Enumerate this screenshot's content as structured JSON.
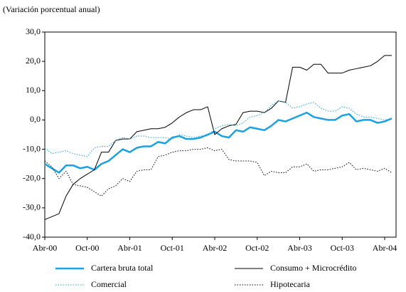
{
  "chart_data": {
    "type": "line",
    "subtitle": "(Variación porcentual anual)",
    "categories": [
      "Abr-00",
      null,
      null,
      null,
      null,
      null,
      "Oct-00",
      null,
      null,
      null,
      null,
      null,
      "Abr-01",
      null,
      null,
      null,
      null,
      null,
      "Oct-01",
      null,
      null,
      null,
      null,
      null,
      "Abr-02",
      null,
      null,
      null,
      null,
      null,
      "Oct-02",
      null,
      null,
      null,
      null,
      null,
      "Abr-03",
      null,
      null,
      null,
      null,
      null,
      "Oct-03",
      null,
      null,
      null,
      null,
      null,
      "Abr-04",
      null
    ],
    "series": [
      {
        "name": "Cartera bruta total",
        "color": "#1ba1e2",
        "style": "solid",
        "width": 2.5,
        "values": [
          -15,
          -16.5,
          -18,
          -15.5,
          -15.5,
          -16.5,
          -16,
          -17,
          -15,
          -14,
          -12,
          -10,
          -11,
          -9.5,
          -9,
          -9,
          -7.5,
          -8,
          -6,
          -5.5,
          -6.5,
          -6.5,
          -6,
          -5,
          -4,
          -5.5,
          -6,
          -3.5,
          -4,
          -2.5,
          -3,
          -3.5,
          -2,
          0,
          -0.5,
          0.5,
          1.5,
          2.5,
          1,
          0.5,
          0,
          0,
          1.5,
          2,
          -0.5,
          0,
          0,
          -1,
          -0.5,
          0.5
        ]
      },
      {
        "name": "Consumo + Microcrédito",
        "color": "#000000",
        "style": "solid",
        "width": 1,
        "values": [
          -34,
          -33,
          -32,
          -26,
          -22,
          -20,
          -18.5,
          -17,
          -11,
          -11,
          -7,
          -6.5,
          -6.5,
          -4,
          -3.5,
          -3,
          -3,
          -2.5,
          -1,
          1,
          2.5,
          3.5,
          3.5,
          4.5,
          -5,
          -3,
          -2,
          -1.5,
          2.5,
          3,
          3,
          2.5,
          4,
          6.5,
          6,
          18,
          18,
          17,
          19,
          19,
          16,
          16,
          16,
          17,
          17.5,
          18,
          18.5,
          20,
          22,
          22
        ]
      },
      {
        "name": "Comercial",
        "color": "#1ba1e2",
        "style": "dotted",
        "width": 1,
        "values": [
          -9.5,
          -11.5,
          -11,
          -10.5,
          -11.5,
          -12,
          -12.5,
          -9.5,
          -9,
          -9,
          -7,
          -6,
          -6.5,
          -5.5,
          -5.5,
          -6,
          -6,
          -6,
          -6.5,
          -5,
          -5.5,
          -6,
          -5.5,
          -5.5,
          -3,
          -2,
          -1.5,
          -2,
          -1,
          1,
          1.5,
          2.5,
          5,
          6.5,
          6,
          4,
          4.5,
          5.5,
          6,
          4,
          3,
          3,
          4.5,
          4,
          2,
          1,
          1,
          0.5,
          0,
          0.5
        ]
      },
      {
        "name": "Hipotecaria",
        "color": "#000000",
        "style": "dotted",
        "width": 1,
        "values": [
          -14,
          -16,
          -20,
          -17.5,
          -22,
          -22.5,
          -23,
          -24.5,
          -26,
          -23.5,
          -22.5,
          -20,
          -21,
          -17.5,
          -17,
          -17,
          -12.5,
          -12,
          -11,
          -10.5,
          -10.5,
          -10,
          -10,
          -9.5,
          -10.5,
          -10,
          -13.5,
          -14,
          -14,
          -14,
          -14.5,
          -19,
          -17.5,
          -18,
          -18,
          -16,
          -16,
          -15,
          -17.5,
          -17,
          -17,
          -16.5,
          -16,
          -14.5,
          -17,
          -16.5,
          -17,
          -17.5,
          -16.5,
          -18
        ]
      }
    ],
    "ylim": [
      -40,
      30
    ],
    "yticks": [
      {
        "value": -40,
        "label": "-40,0"
      },
      {
        "value": -30,
        "label": "-30,0"
      },
      {
        "value": -20,
        "label": "-20,0"
      },
      {
        "value": -10,
        "label": "-10,0"
      },
      {
        "value": 0,
        "label": "0,0"
      },
      {
        "value": 10,
        "label": "10,0"
      },
      {
        "value": 20,
        "label": "20,0"
      },
      {
        "value": 30,
        "label": "30,0"
      }
    ],
    "grid": false,
    "legend": "bottom"
  }
}
